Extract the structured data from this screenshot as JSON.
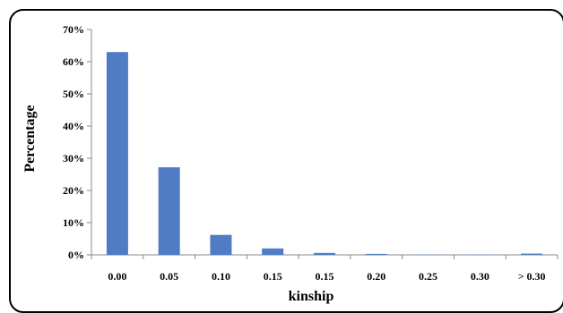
{
  "chart_data": {
    "type": "bar",
    "categories": [
      "0.00",
      "0.05",
      "0.10",
      "0.15",
      "0.15",
      "0.20",
      "0.25",
      "0.30",
      "> 0.30"
    ],
    "values": [
      63,
      27.2,
      6.2,
      2,
      0.6,
      0.3,
      0.1,
      0.1,
      0.4
    ],
    "xlabel": "kinship",
    "ylabel": "Percentage",
    "ylim": [
      0,
      70
    ],
    "y_ticks": [
      "0%",
      "10%",
      "20%",
      "30%",
      "40%",
      "50%",
      "60%",
      "70%"
    ],
    "grid": false,
    "legend": "none",
    "bar_color": "#4F7CC4"
  }
}
